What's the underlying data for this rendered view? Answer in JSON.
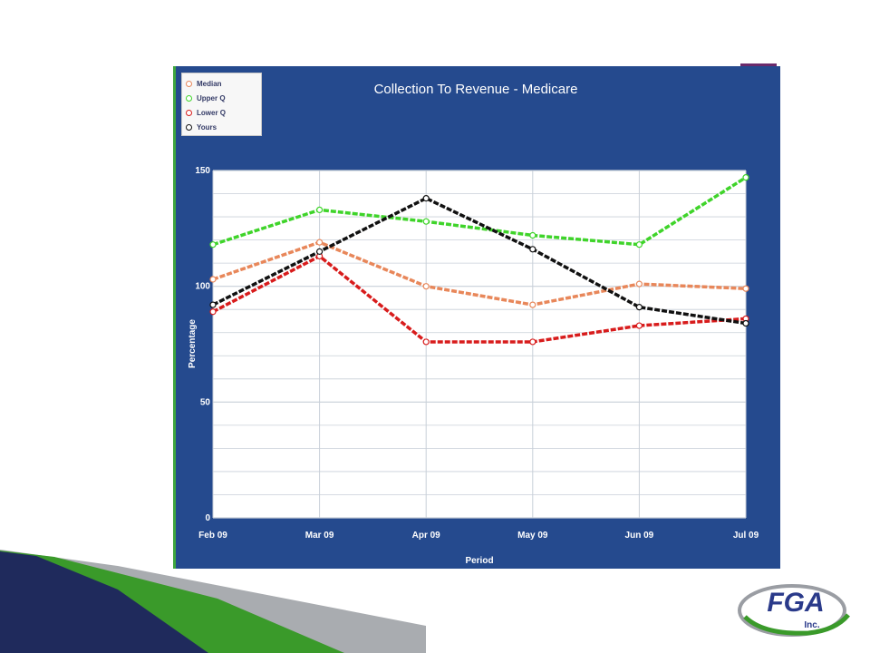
{
  "chart_data": {
    "type": "line",
    "title": "Collection To Revenue - Medicare",
    "xlabel": "Period",
    "ylabel": "Percentage",
    "categories": [
      "Feb 09",
      "Mar 09",
      "Apr 09",
      "May 09",
      "Jun 09",
      "Jul 09"
    ],
    "ylim": [
      0,
      150
    ],
    "yticks": [
      0,
      50,
      100,
      150
    ],
    "grid": true,
    "legend": "top-left",
    "series": [
      {
        "name": "Median",
        "color": "#e8875a",
        "values": [
          103,
          119,
          100,
          92,
          101,
          99
        ]
      },
      {
        "name": "Upper Q",
        "color": "#3fd42a",
        "values": [
          118,
          133,
          128,
          122,
          118,
          147
        ]
      },
      {
        "name": "Lower Q",
        "color": "#d81c1c",
        "values": [
          89,
          113,
          76,
          76,
          83,
          86
        ]
      },
      {
        "name": "Yours",
        "color": "#111111",
        "values": [
          92,
          115,
          138,
          116,
          91,
          84
        ]
      }
    ]
  },
  "colors": {
    "panel": "#254a8e",
    "plot_background": "#ffffff",
    "grid": "#c8cfd8",
    "navy": "#1f2a5c",
    "green": "#3a9a2a",
    "gray": "#a9acb0"
  },
  "logo": {
    "text": "FGA",
    "subtext": "Inc."
  }
}
